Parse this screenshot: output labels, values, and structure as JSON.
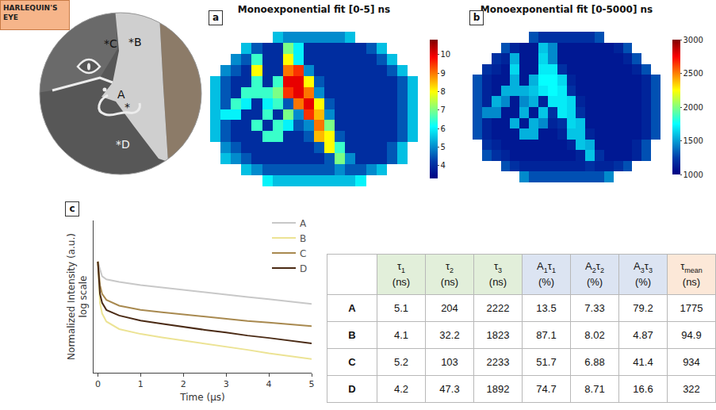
{
  "label": "HARLEQUIN'S EYE",
  "schematic": {
    "labels": [
      "*C",
      "*B",
      "A",
      "*",
      "*D"
    ]
  },
  "chart_data": [
    {
      "panel": "a",
      "type": "heatmap",
      "title": "Monoexponential fit [0-5] ns",
      "tick_labels": false,
      "colorbar": {
        "range": [
          3.3,
          10.8
        ],
        "ticks": [
          4,
          5,
          6,
          7,
          8,
          9,
          10
        ]
      },
      "cells": [
        [
          null,
          null,
          null,
          null,
          null,
          null,
          5.5,
          5,
          5,
          5,
          5,
          5,
          5,
          5.5,
          null,
          null,
          null,
          null,
          null,
          null
        ],
        [
          null,
          null,
          null,
          5.5,
          4.5,
          4,
          4,
          7,
          6,
          4,
          4,
          4,
          4,
          4,
          4,
          4.5,
          5.5,
          null,
          null,
          null
        ],
        [
          null,
          null,
          5,
          4.5,
          6.5,
          4,
          4,
          8,
          6,
          4,
          4,
          4,
          4,
          4,
          4,
          4,
          4.5,
          5.5,
          null,
          null
        ],
        [
          null,
          5,
          4.5,
          4,
          8,
          4,
          4,
          9,
          9.5,
          5,
          4,
          4,
          4,
          4,
          4,
          4,
          4,
          4.5,
          5.5,
          null
        ],
        [
          5.5,
          4.5,
          4,
          4,
          6.5,
          4,
          6.5,
          10,
          10,
          8,
          4.5,
          4,
          4,
          4,
          4,
          4,
          4,
          4,
          4.5,
          5.5
        ],
        [
          5.5,
          4.5,
          4,
          6.5,
          6.5,
          6.5,
          7,
          9.5,
          10,
          9,
          5,
          4,
          4,
          4,
          4,
          4,
          4,
          4,
          4.5,
          5.5
        ],
        [
          5.5,
          4.5,
          6.5,
          6,
          4,
          6,
          6.5,
          4.5,
          9,
          10,
          8,
          4.5,
          4,
          4,
          4,
          4,
          4,
          4,
          4.5,
          5.5
        ],
        [
          5.5,
          6,
          6,
          4,
          4,
          6.5,
          4,
          7,
          5,
          9.5,
          8.5,
          5,
          4,
          4,
          4,
          4,
          4,
          4,
          4.5,
          5.5
        ],
        [
          5.5,
          4.5,
          4,
          4,
          6.5,
          4,
          6.5,
          6,
          4.5,
          5,
          9,
          7,
          4,
          4,
          4,
          4,
          4,
          4,
          4.5,
          5.5
        ],
        [
          5.5,
          4.5,
          4,
          4,
          4,
          6.5,
          6.5,
          4,
          4,
          4.5,
          8.5,
          8,
          4.5,
          4,
          4,
          4,
          4,
          4,
          4.5,
          5.5
        ],
        [
          null,
          5,
          4.5,
          4,
          4,
          4,
          4,
          4,
          4,
          4,
          4.5,
          8,
          6.5,
          4,
          4,
          4,
          4,
          4.5,
          5.5,
          null
        ],
        [
          null,
          5.5,
          5,
          4.5,
          4,
          4,
          4,
          4,
          4,
          4,
          4,
          4.5,
          7,
          5,
          4,
          4,
          4,
          4.5,
          5.5,
          null
        ],
        [
          null,
          null,
          null,
          5.5,
          5,
          4.5,
          4.5,
          4.5,
          4.5,
          4.5,
          4.5,
          4.5,
          5,
          4.5,
          4.5,
          5,
          5.5,
          null,
          null,
          null
        ],
        [
          null,
          null,
          null,
          null,
          null,
          6,
          5.5,
          5.5,
          5.5,
          5.5,
          5.5,
          5.5,
          5.5,
          5.5,
          6,
          null,
          null,
          null,
          null,
          null
        ]
      ]
    },
    {
      "panel": "b",
      "type": "heatmap",
      "title": "Monoexponential fit [0-5000] ns",
      "tick_labels": false,
      "colorbar": {
        "range": [
          1000,
          3000
        ],
        "ticks": [
          1000,
          1500,
          2000,
          2500,
          3000
        ]
      },
      "cells": [
        [
          null,
          null,
          null,
          null,
          null,
          null,
          1300,
          1200,
          1200,
          1200,
          1200,
          1200,
          1200,
          1300,
          null,
          null,
          null,
          null,
          null,
          null
        ],
        [
          null,
          null,
          null,
          1300,
          1150,
          1100,
          1100,
          1600,
          1450,
          1100,
          1100,
          1100,
          1100,
          1100,
          1100,
          1150,
          1300,
          null,
          null,
          null
        ],
        [
          null,
          null,
          1200,
          1150,
          1550,
          1100,
          1100,
          1650,
          1450,
          1100,
          1100,
          1100,
          1100,
          1100,
          1100,
          1100,
          1150,
          1300,
          null,
          null
        ],
        [
          null,
          1200,
          1150,
          1100,
          1650,
          1100,
          1100,
          1700,
          1700,
          1200,
          1100,
          1100,
          1100,
          1100,
          1100,
          1100,
          1100,
          1150,
          1300,
          null
        ],
        [
          1300,
          1150,
          1100,
          1100,
          1550,
          1100,
          1550,
          1750,
          1750,
          1650,
          1150,
          1100,
          1100,
          1100,
          1100,
          1100,
          1100,
          1100,
          1150,
          1300
        ],
        [
          1300,
          1150,
          1100,
          1550,
          1550,
          1550,
          1600,
          1700,
          1750,
          1700,
          1200,
          1100,
          1100,
          1100,
          1100,
          1100,
          1100,
          1100,
          1150,
          1300
        ],
        [
          1300,
          1150,
          1550,
          1450,
          1100,
          1450,
          1550,
          1150,
          1700,
          1700,
          1650,
          1150,
          1100,
          1100,
          1100,
          1100,
          1100,
          1100,
          1150,
          1300
        ],
        [
          1300,
          1450,
          1450,
          1100,
          1100,
          1550,
          1100,
          1600,
          1200,
          1700,
          1650,
          1200,
          1100,
          1100,
          1100,
          1100,
          1100,
          1100,
          1150,
          1300
        ],
        [
          1300,
          1150,
          1100,
          1100,
          1550,
          1100,
          1550,
          1450,
          1150,
          1200,
          1650,
          1600,
          1100,
          1100,
          1100,
          1100,
          1100,
          1100,
          1150,
          1300
        ],
        [
          1300,
          1150,
          1100,
          1100,
          1100,
          1550,
          1550,
          1100,
          1100,
          1150,
          1600,
          1600,
          1150,
          1100,
          1100,
          1100,
          1100,
          1100,
          1150,
          1300
        ],
        [
          null,
          1200,
          1150,
          1100,
          1100,
          1100,
          1100,
          1100,
          1100,
          1100,
          1150,
          1600,
          1550,
          1100,
          1100,
          1100,
          1100,
          1150,
          1300,
          null
        ],
        [
          null,
          1300,
          1200,
          1150,
          1100,
          1100,
          1100,
          1100,
          1100,
          1100,
          1100,
          1150,
          1600,
          1200,
          1100,
          1100,
          1100,
          1150,
          1300,
          null
        ],
        [
          null,
          null,
          null,
          1300,
          1200,
          1150,
          1150,
          1150,
          1150,
          1150,
          1150,
          1150,
          1200,
          1150,
          1150,
          1200,
          1300,
          null,
          null,
          null
        ],
        [
          null,
          null,
          null,
          null,
          null,
          1450,
          1300,
          1300,
          1300,
          1300,
          1300,
          1300,
          1300,
          1300,
          1450,
          null,
          null,
          null,
          null,
          null
        ]
      ]
    },
    {
      "panel": "c",
      "type": "line",
      "x_label": "Time (µs)",
      "y_label": [
        "Normalized Intensity (a.u.)",
        "log scale"
      ],
      "log": "y",
      "grid": false,
      "legend": "top right",
      "tick_labels": "x",
      "xlim": [
        -0.1,
        5
      ],
      "xticks": [
        0,
        1,
        2,
        3,
        4,
        5
      ],
      "ylim": [
        0.002,
        10
      ],
      "x": [
        0,
        0.05,
        0.1,
        0.2,
        0.5,
        1,
        1.5,
        2,
        2.5,
        3,
        3.5,
        4,
        4.5,
        5
      ],
      "series": [
        {
          "name": "A",
          "color": "#c8c8c8",
          "values": [
            1,
            0.62,
            0.44,
            0.37,
            0.32,
            0.27,
            0.235,
            0.206,
            0.18,
            0.158,
            0.139,
            0.122,
            0.107,
            0.094
          ]
        },
        {
          "name": "B",
          "color": "#ece394",
          "values": [
            1,
            0.1,
            0.055,
            0.035,
            0.023,
            0.0175,
            0.0144,
            0.0122,
            0.01,
            0.0085,
            0.0072,
            0.0059,
            0.005,
            0.0043
          ]
        },
        {
          "name": "C",
          "color": "#a8894f",
          "values": [
            1,
            0.27,
            0.164,
            0.118,
            0.085,
            0.067,
            0.059,
            0.052,
            0.045,
            0.04,
            0.036,
            0.033,
            0.03,
            0.027
          ]
        },
        {
          "name": "D",
          "color": "#4a2a14",
          "values": [
            1,
            0.164,
            0.1,
            0.067,
            0.049,
            0.037,
            0.031,
            0.026,
            0.022,
            0.019,
            0.016,
            0.014,
            0.012,
            0.0103
          ]
        }
      ]
    }
  ],
  "table": {
    "columns": [
      {
        "symbol": [
          [
            "τ",
            "1"
          ]
        ],
        "unit": "(ns)",
        "color": "#e2efda"
      },
      {
        "symbol": [
          [
            "τ",
            "2"
          ]
        ],
        "unit": "(ns)",
        "color": "#e2efda"
      },
      {
        "symbol": [
          [
            "τ",
            "3"
          ]
        ],
        "unit": "(ns)",
        "color": "#e2efda"
      },
      {
        "symbol": [
          [
            "A",
            "1"
          ],
          [
            "τ",
            "1"
          ]
        ],
        "unit": "(%)",
        "color": "#dce4f2"
      },
      {
        "symbol": [
          [
            "A",
            "2"
          ],
          [
            "τ",
            "2"
          ]
        ],
        "unit": "(%)",
        "color": "#dce4f2"
      },
      {
        "symbol": [
          [
            "A",
            "3"
          ],
          [
            "τ",
            "3"
          ]
        ],
        "unit": "(%)",
        "color": "#dce4f2"
      },
      {
        "symbol": [
          [
            "τ",
            "mean"
          ]
        ],
        "unit": "(ns)",
        "color": "#fce8d8"
      }
    ],
    "rows": [
      {
        "label": "A",
        "values": [
          5.1,
          204,
          2222,
          13.5,
          7.33,
          79.2,
          1775
        ]
      },
      {
        "label": "B",
        "values": [
          4.1,
          32.2,
          1823,
          87.1,
          8.02,
          4.87,
          94.9
        ]
      },
      {
        "label": "C",
        "values": [
          5.2,
          103,
          2233,
          51.7,
          6.88,
          41.4,
          934
        ]
      },
      {
        "label": "D",
        "values": [
          4.2,
          47.3,
          1892,
          74.7,
          8.71,
          16.6,
          322
        ]
      }
    ]
  }
}
